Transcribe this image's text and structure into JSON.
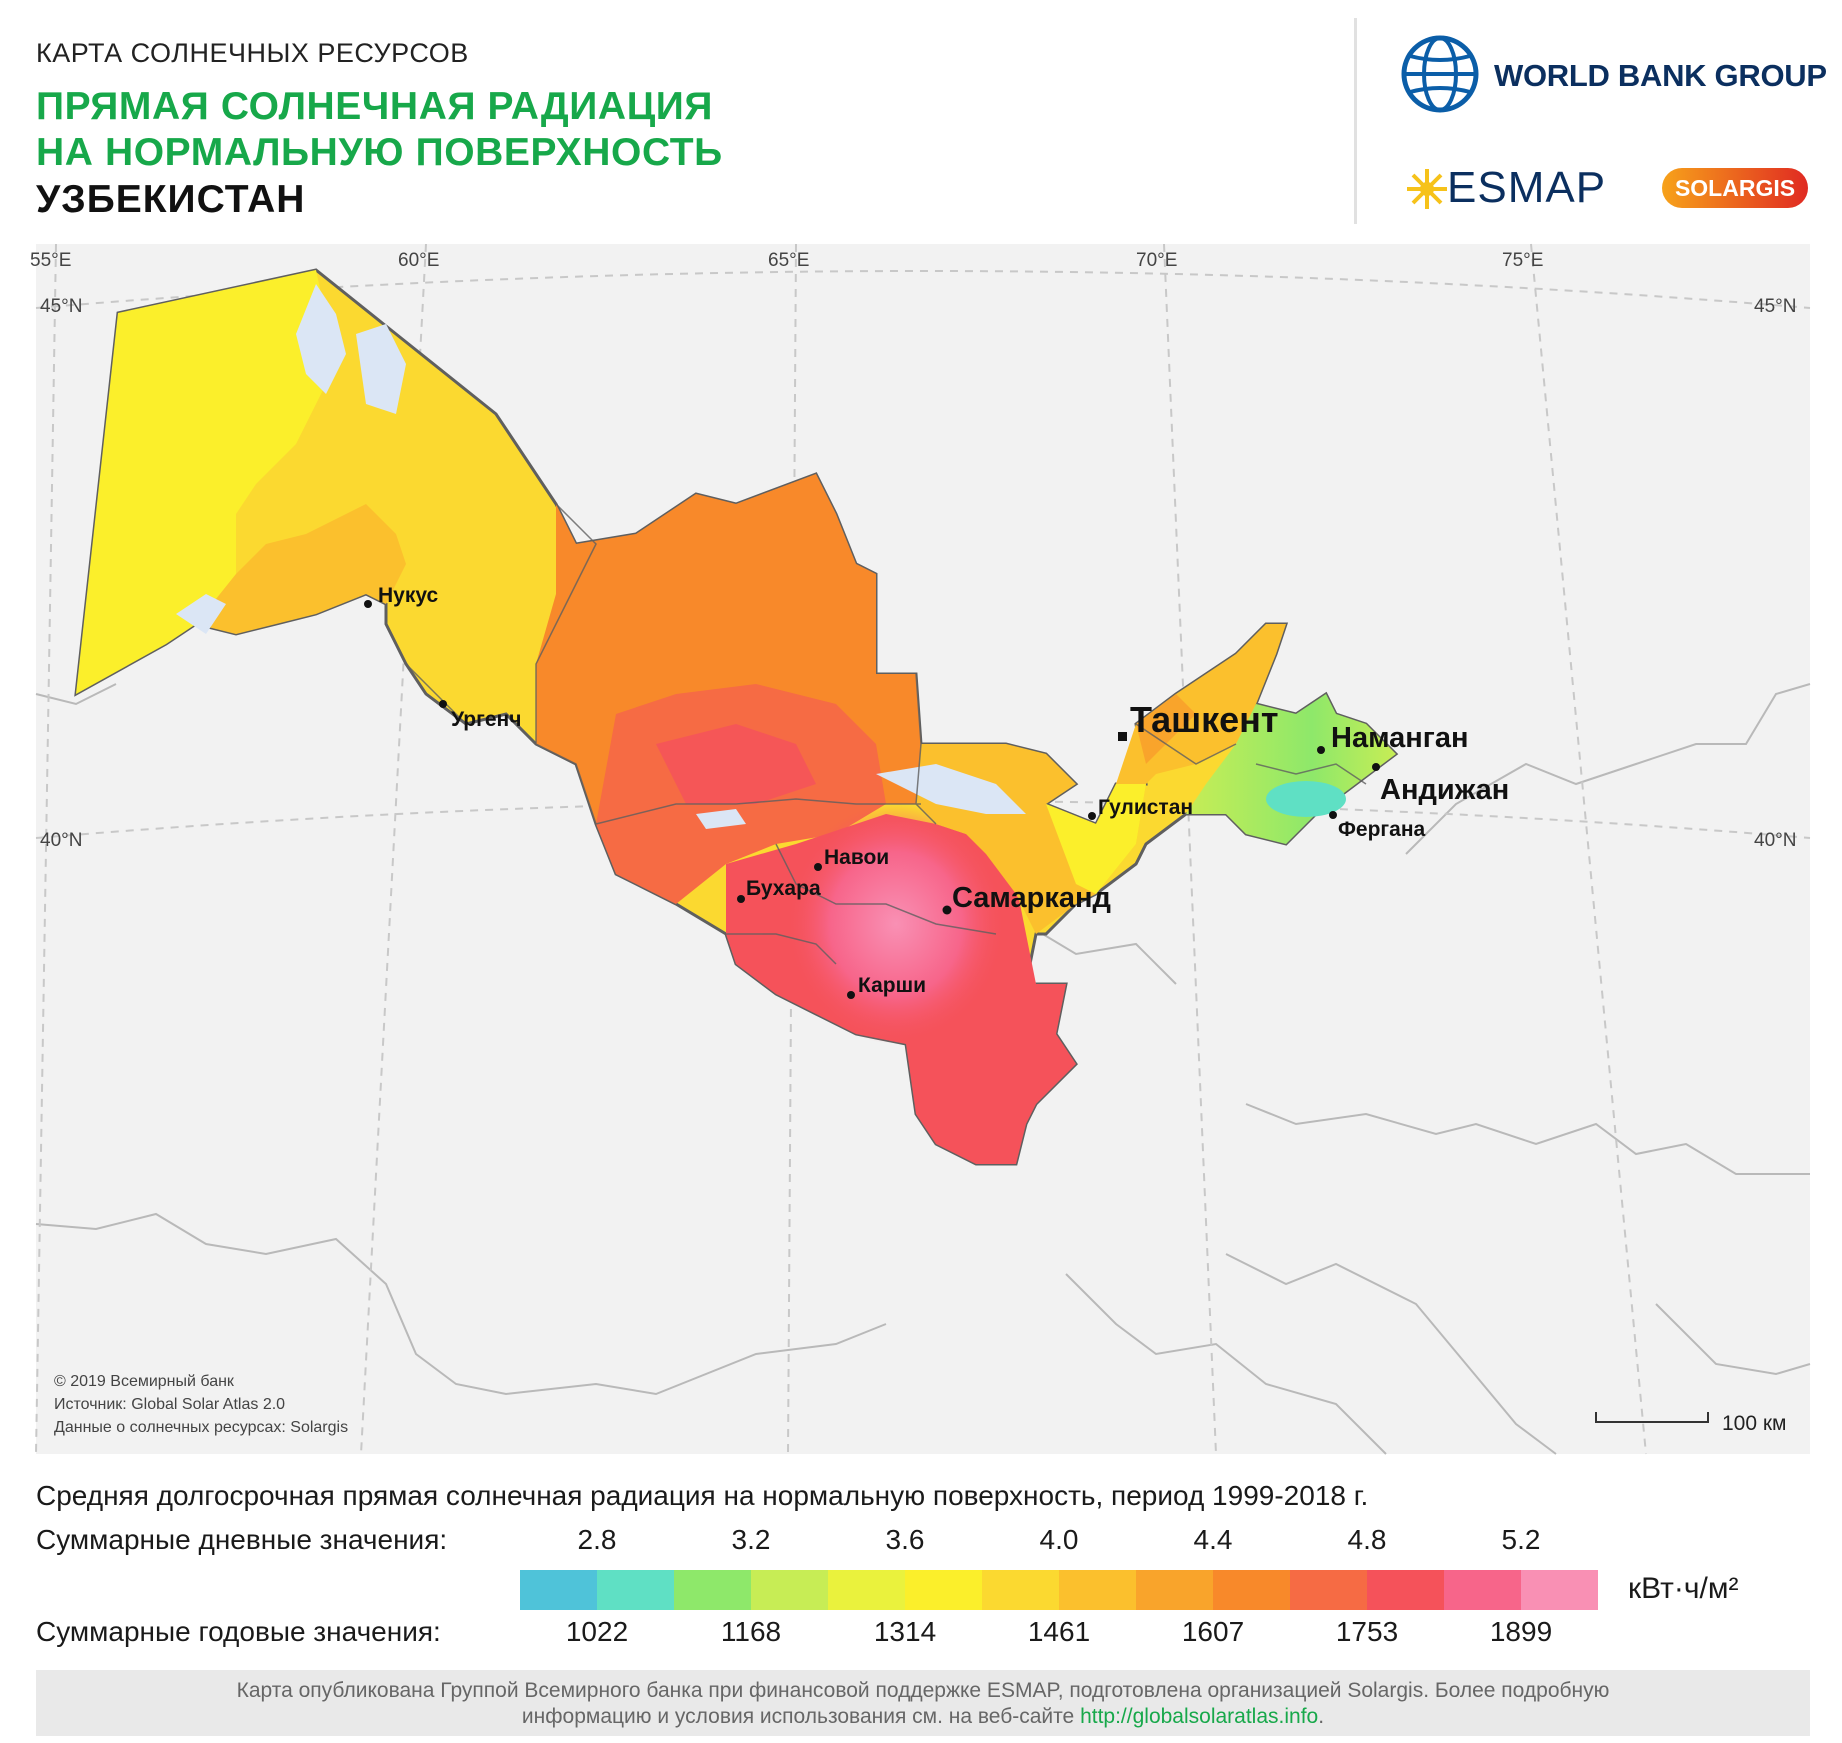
{
  "header": {
    "subtitle": "КАРТА СОЛНЕЧНЫХ РЕСУРСОВ",
    "title_line1": "ПРЯМАЯ СОЛНЕЧНАЯ РАДИАЦИЯ",
    "title_line2": "НА НОРМАЛЬНУЮ ПОВЕРХНОСТЬ",
    "country": "УЗБЕКИСТАН"
  },
  "logos": {
    "world_bank": "WORLD BANK GROUP",
    "esmap": "ESMAP",
    "solargis": "SOLARGIS"
  },
  "map": {
    "grid": {
      "longitudes": [
        "55°E",
        "60°E",
        "65°E",
        "70°E",
        "75°E"
      ],
      "latitudes": [
        "45°N",
        "40°N"
      ]
    },
    "cities": [
      {
        "name": "Нукус"
      },
      {
        "name": "Ургенч"
      },
      {
        "name": "Ташкент"
      },
      {
        "name": "Наманган"
      },
      {
        "name": "Андижан"
      },
      {
        "name": "Гулистан"
      },
      {
        "name": "Фергана"
      },
      {
        "name": "Навои"
      },
      {
        "name": "Бухара"
      },
      {
        "name": "Самарканд"
      },
      {
        "name": "Карши"
      }
    ],
    "credits": [
      "© 2019 Всемирный банк",
      "Источник: Global Solar Atlas 2.0",
      "Данные о солнечных ресурсах: Solargis"
    ],
    "scale": "100 км"
  },
  "legend": {
    "title": "Средняя долгосрочная прямая солнечная радиация на нормальную поверхность, период 1999-2018 г.",
    "daily_label": "Суммарные дневные значения:",
    "daily_ticks": [
      "2.8",
      "3.2",
      "3.6",
      "4.0",
      "4.4",
      "4.8",
      "5.2"
    ],
    "yearly_label": "Суммарные годовые значения:",
    "yearly_ticks": [
      "1022",
      "1168",
      "1314",
      "1461",
      "1607",
      "1753",
      "1899"
    ],
    "unit": "кВт·ч/м²",
    "colors": [
      "#4fc3d9",
      "#5fe0c4",
      "#8ee86a",
      "#c7ed55",
      "#eaf23d",
      "#fbef2b",
      "#fbd930",
      "#fbc02d",
      "#f9a42b",
      "#f8892a",
      "#f66b44",
      "#f5525a",
      "#f7658a",
      "#f990b4"
    ]
  },
  "footer": {
    "line1": "Карта опубликована Группой Всемирного банка при финансовой поддержке ESMAP, подготовлена организацией Solargis. Более подробную",
    "line2_text": "информацию и условия использования см. на веб-сайте ",
    "line2_link": "http://globalsolaratlas.info",
    "line2_end": "."
  }
}
